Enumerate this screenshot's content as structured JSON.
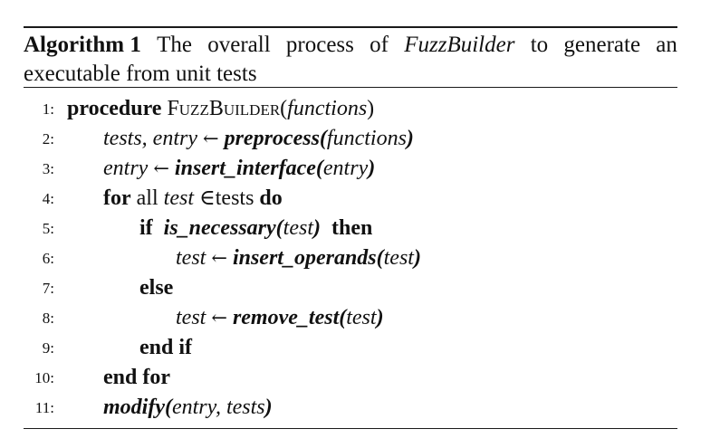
{
  "caption": {
    "label": "Algorithm 1",
    "words": [
      "The",
      "overall",
      "process",
      "of",
      "FuzzBuilder",
      "to",
      "generate",
      "an"
    ],
    "line2": "executable from unit tests"
  },
  "lines": [
    {
      "num": "1:",
      "kw": "procedure",
      "name": "FuzzBuilder",
      "open": "(",
      "arg": "functions",
      "close": ")"
    },
    {
      "num": "2:",
      "lhs": "tests, entry",
      "arrow": "←",
      "fn": "preprocess(",
      "arg": "functions",
      "close": ")"
    },
    {
      "num": "3:",
      "lhs": "entry",
      "arrow": "←",
      "fn": "insert_interface(",
      "arg": "entry",
      "close": ")"
    },
    {
      "num": "4:",
      "kw": "for",
      "t1": "all",
      "var": "test",
      "t2": "∈tests",
      "kw2": "do"
    },
    {
      "num": "5:",
      "kw": "if",
      "fn": "is_necessary(",
      "arg": "test",
      "close": ")",
      "kw2": "then"
    },
    {
      "num": "6:",
      "lhs": "test",
      "arrow": "←",
      "fn": "insert_operands(",
      "arg": "test",
      "close": ")"
    },
    {
      "num": "7:",
      "kw": "else"
    },
    {
      "num": "8:",
      "lhs": "test",
      "arrow": "←",
      "fn": "remove_test(",
      "arg": "test",
      "close": ")"
    },
    {
      "num": "9:",
      "kw": "end if"
    },
    {
      "num": "10:",
      "kw": "end for"
    },
    {
      "num": "11:",
      "fn": "modify(",
      "arg": "entry, tests",
      "close": ")"
    }
  ]
}
